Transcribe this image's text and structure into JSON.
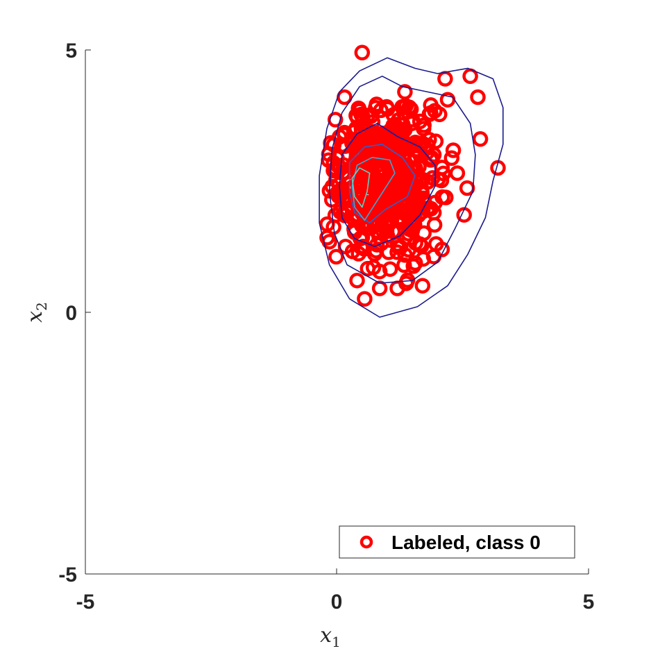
{
  "chart_data": {
    "type": "scatter",
    "title": "",
    "xlabel": "x",
    "xlabel_sub": "1",
    "ylabel": "x",
    "ylabel_sub": "2",
    "xlim": [
      -5,
      5
    ],
    "ylim": [
      -5,
      5
    ],
    "xticks": [
      -5,
      0,
      5
    ],
    "yticks": [
      -5,
      0,
      5
    ],
    "xtick_labels": [
      "-5",
      "0",
      "5"
    ],
    "ytick_labels": [
      "-5",
      "0",
      "5"
    ],
    "grid": false,
    "legend": {
      "placement": "bottom-right",
      "entries": [
        "Labeled, class 0"
      ]
    },
    "series": [
      {
        "name": "Labeled, class 0",
        "marker": "circle-open",
        "color": "#ff0000",
        "center": [
          0.9,
          2.5
        ],
        "std": [
          0.55,
          0.75
        ],
        "count": 520,
        "outliers": [
          [
            0.5,
            4.95
          ],
          [
            2.15,
            4.45
          ],
          [
            2.65,
            4.5
          ],
          [
            2.8,
            4.1
          ],
          [
            0.15,
            4.1
          ],
          [
            1.35,
            4.2
          ],
          [
            3.2,
            2.75
          ],
          [
            2.85,
            3.3
          ],
          [
            0.55,
            0.25
          ],
          [
            0.85,
            0.45
          ],
          [
            1.2,
            0.45
          ],
          [
            1.7,
            0.5
          ],
          [
            0.4,
            0.6
          ],
          [
            2.2,
            4.05
          ]
        ]
      }
    ],
    "contours": {
      "colors": [
        "#1a1a8c",
        "#0a1fa8",
        "#2f5fd0",
        "#3aa7d6",
        "#5bd6c8"
      ],
      "levels": [
        {
          "color": "#1a1a8c",
          "path": [
            [
              0.85,
              -0.1
            ],
            [
              1.6,
              0.1
            ],
            [
              2.2,
              0.5
            ],
            [
              2.6,
              1.1
            ],
            [
              2.95,
              1.8
            ],
            [
              3.1,
              2.5
            ],
            [
              3.3,
              3.2
            ],
            [
              3.3,
              3.9
            ],
            [
              3.1,
              4.45
            ],
            [
              2.6,
              4.65
            ],
            [
              2.0,
              4.55
            ],
            [
              1.55,
              4.65
            ],
            [
              1.0,
              4.85
            ],
            [
              0.45,
              4.6
            ],
            [
              0.05,
              4.2
            ],
            [
              -0.2,
              3.5
            ],
            [
              -0.35,
              2.6
            ],
            [
              -0.35,
              1.7
            ],
            [
              -0.15,
              0.9
            ],
            [
              0.25,
              0.25
            ],
            [
              0.85,
              -0.1
            ]
          ]
        },
        {
          "color": "#1a1a8c",
          "path": [
            [
              0.85,
              0.55
            ],
            [
              1.5,
              0.6
            ],
            [
              2.0,
              0.95
            ],
            [
              2.35,
              1.6
            ],
            [
              2.7,
              2.3
            ],
            [
              2.75,
              3.0
            ],
            [
              2.65,
              3.6
            ],
            [
              2.3,
              4.1
            ],
            [
              1.8,
              4.2
            ],
            [
              1.3,
              4.3
            ],
            [
              0.9,
              4.5
            ],
            [
              0.45,
              4.3
            ],
            [
              0.1,
              3.8
            ],
            [
              -0.1,
              3.1
            ],
            [
              -0.15,
              2.3
            ],
            [
              -0.05,
              1.5
            ],
            [
              0.2,
              0.9
            ],
            [
              0.85,
              0.55
            ]
          ]
        },
        {
          "color": "#0a1fa8",
          "path": [
            [
              0.75,
              1.25
            ],
            [
              1.25,
              1.45
            ],
            [
              1.65,
              1.85
            ],
            [
              1.95,
              2.4
            ],
            [
              1.95,
              2.8
            ],
            [
              1.65,
              3.15
            ],
            [
              1.2,
              3.35
            ],
            [
              0.8,
              3.6
            ],
            [
              0.4,
              3.4
            ],
            [
              0.1,
              3.0
            ],
            [
              0.05,
              2.4
            ],
            [
              0.1,
              1.8
            ],
            [
              0.35,
              1.4
            ],
            [
              0.75,
              1.25
            ]
          ]
        },
        {
          "color": "#2f5fd0",
          "path": [
            [
              0.65,
              1.7
            ],
            [
              0.95,
              1.95
            ],
            [
              1.4,
              2.2
            ],
            [
              1.55,
              2.6
            ],
            [
              1.3,
              2.95
            ],
            [
              0.9,
              3.2
            ],
            [
              0.55,
              3.15
            ],
            [
              0.25,
              2.85
            ],
            [
              0.25,
              2.3
            ],
            [
              0.35,
              1.9
            ],
            [
              0.65,
              1.7
            ]
          ]
        },
        {
          "color": "#3aa7d6",
          "path": [
            [
              0.55,
              1.75
            ],
            [
              0.75,
              2.05
            ],
            [
              0.95,
              2.35
            ],
            [
              1.15,
              2.65
            ],
            [
              1.05,
              2.9
            ],
            [
              0.7,
              2.95
            ],
            [
              0.4,
              2.8
            ],
            [
              0.3,
              2.4
            ],
            [
              0.35,
              2.0
            ],
            [
              0.55,
              1.75
            ]
          ]
        },
        {
          "color": "#5bd6c8",
          "path": [
            [
              0.5,
              2.0
            ],
            [
              0.6,
              2.3
            ],
            [
              0.65,
              2.65
            ],
            [
              0.45,
              2.75
            ],
            [
              0.3,
              2.55
            ],
            [
              0.35,
              2.2
            ],
            [
              0.5,
              2.0
            ]
          ]
        }
      ]
    }
  }
}
